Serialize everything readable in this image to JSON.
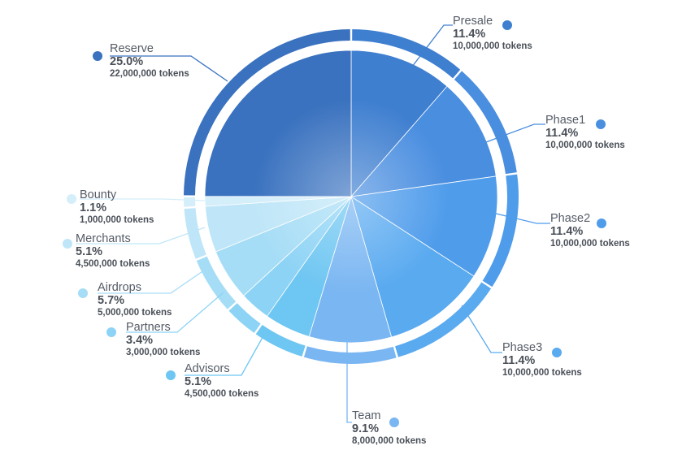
{
  "chart_data": {
    "type": "pie",
    "slices": [
      {
        "name": "Presale",
        "percent": "11.4%",
        "value": 11.4,
        "tokens": "10,000,000 tokens",
        "color": "#3f7fd0"
      },
      {
        "name": "Phase1",
        "percent": "11.4%",
        "value": 11.4,
        "tokens": "10,000,000 tokens",
        "color": "#4a8ee0"
      },
      {
        "name": "Phase2",
        "percent": "11.4%",
        "value": 11.4,
        "tokens": "10,000,000 tokens",
        "color": "#4f9ceb"
      },
      {
        "name": "Phase3",
        "percent": "11.4%",
        "value": 11.4,
        "tokens": "10,000,000 tokens",
        "color": "#5aaaf0"
      },
      {
        "name": "Team",
        "percent": "9.1%",
        "value": 9.1,
        "tokens": "8,000,000 tokens",
        "color": "#7ab6f2"
      },
      {
        "name": "Advisors",
        "percent": "5.1%",
        "value": 5.1,
        "tokens": "4,500,000 tokens",
        "color": "#6ec6f2"
      },
      {
        "name": "Partners",
        "percent": "3.4%",
        "value": 3.4,
        "tokens": "3,000,000 tokens",
        "color": "#8dd3f5"
      },
      {
        "name": "Airdrops",
        "percent": "5.7%",
        "value": 5.7,
        "tokens": "5,000,000 tokens",
        "color": "#a6ddf6"
      },
      {
        "name": "Merchants",
        "percent": "5.1%",
        "value": 5.1,
        "tokens": "4,500,000 tokens",
        "color": "#bfe6f8"
      },
      {
        "name": "Bounty",
        "percent": "1.1%",
        "value": 1.1,
        "tokens": "1,000,000 tokens",
        "color": "#d4eefa"
      },
      {
        "name": "Reserve",
        "percent": "25.0%",
        "value": 25.0,
        "tokens": "22,000,000 tokens",
        "color": "#3a72bf"
      }
    ]
  }
}
